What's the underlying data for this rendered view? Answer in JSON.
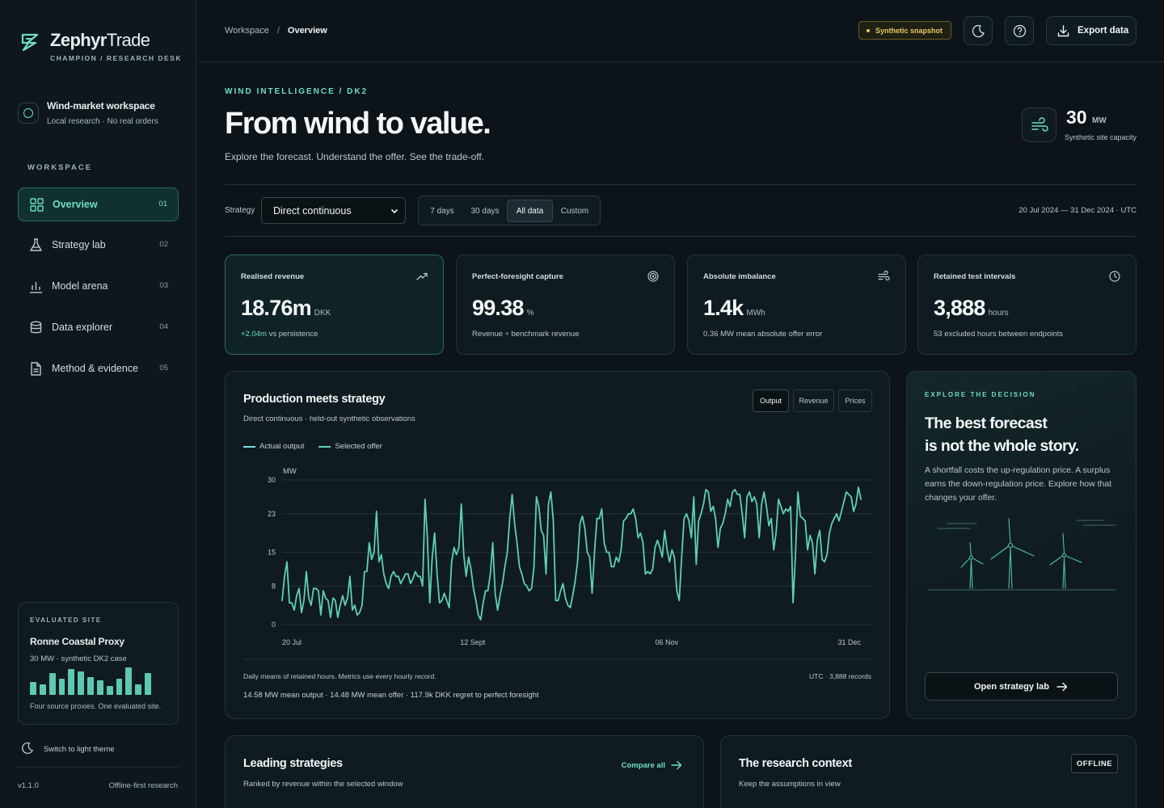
{
  "brand": {
    "name_bold": "Zephyr",
    "name_light": "Trade",
    "subtitle": "CHAMPION / RESEARCH DESK"
  },
  "workspace": {
    "title": "Wind-market workspace",
    "subtitle": "Local research · No real orders"
  },
  "sidebar": {
    "section_label": "WORKSPACE",
    "items": [
      {
        "label": "Overview",
        "num": "01",
        "icon": "grid-icon",
        "active": true
      },
      {
        "label": "Strategy lab",
        "num": "02",
        "icon": "flask-icon",
        "active": false
      },
      {
        "label": "Model arena",
        "num": "03",
        "icon": "bar-chart-icon",
        "active": false
      },
      {
        "label": "Data explorer",
        "num": "04",
        "icon": "database-icon",
        "active": false
      },
      {
        "label": "Method & evidence",
        "num": "05",
        "icon": "document-icon",
        "active": false
      }
    ],
    "site": {
      "label": "EVALUATED SITE",
      "name": "Ronne Coastal Proxy",
      "subtitle": "30 MW · synthetic DK2 case",
      "bars": [
        0.45,
        0.35,
        0.75,
        0.55,
        0.9,
        0.8,
        0.6,
        0.5,
        0.3,
        0.55,
        0.95,
        0.35,
        0.75
      ],
      "footer": "Four source proxies. One evaluated site."
    },
    "theme_toggle": "Switch to light theme",
    "version": "v1.1.0",
    "offline_note": "Offline-first research"
  },
  "topbar": {
    "breadcrumb_root": "Workspace",
    "breadcrumb_sep": "/",
    "breadcrumb_current": "Overview",
    "snapshot_badge": "Synthetic snapshot",
    "export_label": "Export data"
  },
  "hero": {
    "eyebrow": "WIND INTELLIGENCE / DK2",
    "title": "From wind to value.",
    "subtitle": "Explore the forecast. Understand the offer. See the trade-off.",
    "capacity_value": "30",
    "capacity_unit": "MW",
    "capacity_label": "Synthetic site capacity"
  },
  "filters": {
    "strategy_label": "Strategy",
    "strategy_value": "Direct continuous",
    "ranges": [
      "7 days",
      "30 days",
      "All data",
      "Custom"
    ],
    "active_range": "All data",
    "date_range": "20 Jul 2024 — 31 Dec 2024 · UTC"
  },
  "kpis": [
    {
      "label": "Realised revenue",
      "value": "18.76m",
      "unit": "DKK",
      "foot_pos": "+2.04m",
      "foot": "vs persistence",
      "icon": "trend-up-icon"
    },
    {
      "label": "Perfect-foresight capture",
      "value": "99.38",
      "unit": "%",
      "foot_pos": "",
      "foot": "Revenue ÷ benchmark revenue",
      "icon": "target-icon"
    },
    {
      "label": "Absolute imbalance",
      "value": "1.4k",
      "unit": "MWh",
      "foot_pos": "",
      "foot": "0.36 MW mean absolute offer error",
      "icon": "wind-icon"
    },
    {
      "label": "Retained test intervals",
      "value": "3,888",
      "unit": "hours",
      "foot_pos": "",
      "foot": "53 excluded hours between endpoints",
      "icon": "clock-icon"
    }
  ],
  "chart": {
    "title": "Production meets strategy",
    "subtitle": "Direct continuous · held-out synthetic observations",
    "tabs": [
      "Output",
      "Revenue",
      "Prices"
    ],
    "active_tab": "Output",
    "note": "Daily means of retained hours. Metrics use every hourly record.",
    "note_right": "UTC · 3,888 records",
    "stats": "14.58 MW mean output · 14.48 MW mean offer · 117.9k DKK regret to perfect foresight",
    "colors": {
      "actual": "#7fd7e0",
      "offer": "#5fd0b0"
    }
  },
  "chart_data": {
    "type": "line",
    "ylabel": "MW",
    "ylim": [
      0,
      30
    ],
    "yticks": [
      "30",
      "23",
      "15",
      "8",
      "0"
    ],
    "ytick_values": [
      30,
      23,
      15,
      8,
      0
    ],
    "xticks": [
      "20 Jul",
      "12 Sept",
      "06 Nov",
      "31 Dec"
    ],
    "xtick_days": [
      0,
      54,
      109,
      164
    ],
    "x_start": "2024-07-20",
    "x_end": "2024-12-31",
    "series": [
      {
        "name": "Actual output",
        "values": [
          5,
          10,
          13,
          4.5,
          4.5,
          3,
          6,
          7.5,
          2.5,
          5,
          11,
          5.5,
          4,
          7.5,
          7.5,
          7,
          2,
          7,
          5.5,
          5,
          1.5,
          5.5,
          5,
          1.5,
          4,
          6,
          4,
          5.5,
          10,
          3,
          4,
          2,
          2.5,
          4,
          11,
          11,
          17,
          13.5,
          15,
          23.5,
          13,
          14.5,
          10.5,
          8.5,
          7.5,
          10,
          11,
          10,
          10,
          8.5,
          9.5,
          10.5,
          10.5,
          8.5,
          9.5,
          11,
          10,
          10,
          8,
          26,
          18,
          4.5,
          14,
          19,
          10.5,
          4.5,
          5,
          6.5,
          5,
          3.5,
          13,
          16,
          14.5,
          16,
          25,
          14.5,
          10,
          14,
          11.5,
          7.5,
          5,
          2,
          1,
          4.5,
          7,
          7,
          10.5,
          17,
          6.5,
          3,
          6,
          8.5,
          12,
          15,
          22,
          27,
          21,
          17,
          12,
          10.5,
          8.5,
          8,
          7,
          7.5,
          12,
          26.5,
          24.5,
          19.5,
          18.5,
          10.5,
          25,
          27.5,
          21.5,
          5,
          5,
          7,
          8.5,
          5.5,
          4,
          3.5,
          6,
          9,
          13,
          21,
          22.5,
          20,
          15,
          14,
          6.5,
          15,
          22,
          22,
          24,
          17,
          15,
          15,
          12,
          12,
          14,
          13,
          15.5,
          21.5,
          22,
          23,
          23,
          24,
          22,
          18,
          19,
          17,
          10.5,
          11,
          10.5,
          11.5,
          16,
          17.5,
          16,
          14,
          19.5,
          15.5,
          13,
          15.5,
          14,
          7,
          5,
          14,
          22,
          23,
          21.5,
          18,
          26.5,
          12.5,
          21.5,
          23,
          25,
          28,
          27.5,
          23.5,
          24.5,
          22,
          16,
          20,
          21,
          23,
          26,
          24.5,
          27.5,
          28,
          27,
          27,
          23,
          18,
          26.5,
          27.5,
          25.5,
          26.5,
          25,
          18,
          25,
          27.5,
          24.5,
          20.5,
          22,
          15.5,
          19,
          26,
          24.5,
          23,
          24,
          23.5,
          24.5,
          4.5,
          14.5,
          27.5,
          22.5,
          22,
          21.5,
          15.5,
          18.5,
          17,
          10.5,
          17.5,
          19.5,
          13.5,
          13,
          14.5,
          19,
          21,
          22,
          23,
          21.5,
          23.5,
          25.5,
          27.5,
          27,
          26.5,
          23.5,
          25,
          28.5,
          26
        ]
      }
    ]
  },
  "explore": {
    "eyebrow": "EXPLORE THE DECISION",
    "title_line1": "The best forecast",
    "title_line2": "is not the whole story.",
    "body": "A shortfall costs the up-regulation price. A surplus earns the down-regulation price. Explore how that changes your offer.",
    "button": "Open strategy lab"
  },
  "bottom": {
    "left_title": "Leading strategies",
    "left_sub": "Ranked by revenue within the selected window",
    "compare_link": "Compare all",
    "right_title": "The research context",
    "right_sub": "Keep the assumptions in view",
    "offline_badge": "OFFLINE"
  }
}
